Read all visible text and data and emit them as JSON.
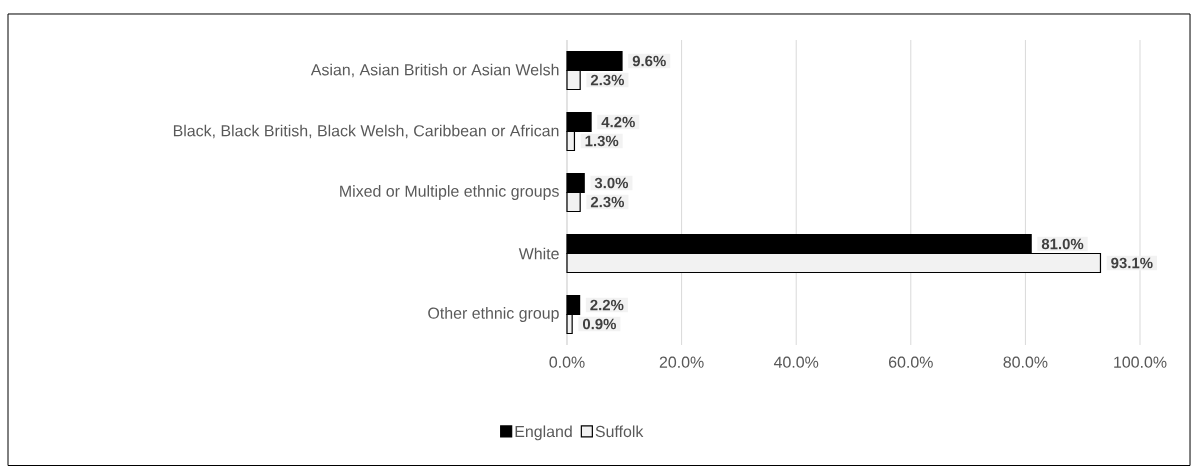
{
  "chart_data": {
    "type": "bar",
    "orientation": "horizontal",
    "categories": [
      "Asian, Asian British or Asian Welsh",
      "Black, Black British, Black Welsh, Caribbean or African",
      "Mixed or Multiple ethnic groups",
      "White",
      "Other ethnic group"
    ],
    "series": [
      {
        "name": "England",
        "color": "#000000",
        "values": [
          9.6,
          4.2,
          3.0,
          81.0,
          2.2
        ],
        "value_labels": [
          "9.6%",
          "4.2%",
          "3.0%",
          "81.0%",
          "2.2%"
        ]
      },
      {
        "name": "Suffolk",
        "color": "#f2f2f2",
        "values": [
          2.3,
          1.3,
          2.3,
          93.1,
          0.9
        ],
        "value_labels": [
          "2.3%",
          "1.3%",
          "2.3%",
          "93.1%",
          "0.9%"
        ]
      }
    ],
    "xlim": [
      0,
      100
    ],
    "xticks": [
      {
        "value": 0,
        "label": "0.0%"
      },
      {
        "value": 20,
        "label": "20.0%"
      },
      {
        "value": 40,
        "label": "40.0%"
      },
      {
        "value": 60,
        "label": "60.0%"
      },
      {
        "value": 80,
        "label": "80.0%"
      },
      {
        "value": 100,
        "label": "100.0%"
      }
    ],
    "grid": "x",
    "legend": "bottom"
  }
}
